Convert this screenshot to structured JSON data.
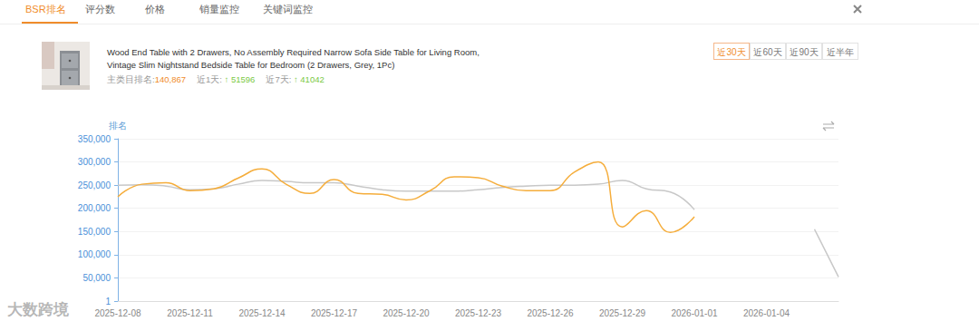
{
  "tabs": {
    "items": [
      "BSR排名",
      "评分数",
      "价格",
      "销量监控",
      "关键词监控"
    ],
    "active": "BSR排名"
  },
  "product": {
    "title": "Wood End Table with 2 Drawers, No Assembly Required Narrow Sofa Side Table for Living Room, Vintage Slim Nightstand Bedside Table for Bedroom (2 Drawers, Grey, 1Pc)",
    "rank_label": "主类目排名:",
    "rank": "140,867",
    "day1_label": "近1天:",
    "day1": 51596,
    "day7_label": "近7天:",
    "day7": 41042,
    "arrow": "↑"
  },
  "ranges": {
    "items": [
      "近30天",
      "近60天",
      "近90天",
      "近半年"
    ],
    "active": "近30天"
  },
  "watermark": "大数跨境",
  "chart_data": {
    "type": "line",
    "y_label": "排名",
    "categories": [
      "2025-12-08",
      null,
      null,
      "2025-12-11",
      null,
      null,
      "2025-12-14",
      null,
      null,
      "2025-12-17",
      null,
      null,
      "2025-12-20",
      null,
      null,
      "2025-12-23",
      null,
      null,
      "2025-12-26",
      null,
      null,
      "2025-12-29",
      null,
      null,
      "2026-01-01",
      null,
      null,
      "2026-01-04",
      null,
      null,
      null
    ],
    "ylim": [
      1,
      350000
    ],
    "yticks": [
      1,
      {
        "value": 50000,
        "label": "50,000"
      },
      {
        "value": 100000,
        "label": "100,000"
      },
      {
        "value": 150000,
        "label": "150,000"
      },
      {
        "value": 200000,
        "label": "200,000"
      },
      {
        "value": 250000,
        "label": "250,000"
      },
      {
        "value": 300000,
        "label": "300,000"
      },
      {
        "value": 350000,
        "label": "350,000"
      }
    ],
    "grid": true,
    "marker": "none",
    "line_style": "solid",
    "series": [
      {
        "color": "#f5ad3b",
        "values": [
          225000,
          252000,
          255000,
          238000,
          242000,
          265000,
          285000,
          252000,
          232000,
          262000,
          232000,
          230000,
          218000,
          238000,
          268000,
          266000,
          248000,
          238000,
          238000,
          278000,
          300000,
          160000,
          195000,
          148000,
          182000,
          null,
          null,
          null,
          null,
          null,
          null
        ]
      },
      {
        "color": "#c8c8c8",
        "values": [
          250000,
          251000,
          248000,
          240000,
          242000,
          252000,
          260000,
          258000,
          255000,
          255000,
          248000,
          240000,
          237000,
          237000,
          237000,
          240000,
          245000,
          248000,
          250000,
          250000,
          252000,
          260000,
          242000,
          235000,
          197000,
          null,
          null,
          null,
          null,
          155000,
          52000
        ]
      }
    ]
  }
}
